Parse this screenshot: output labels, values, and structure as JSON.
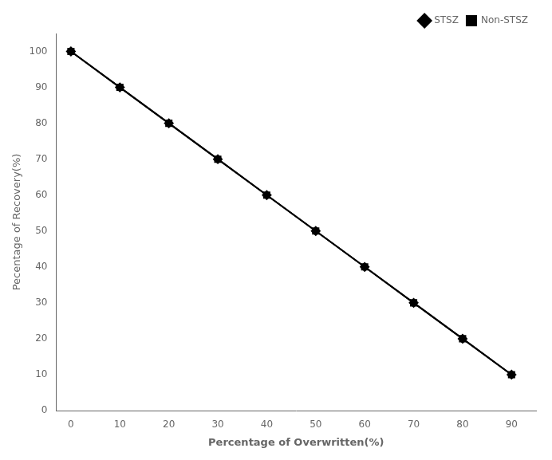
{
  "chart_data": {
    "type": "line",
    "x": [
      0,
      10,
      20,
      30,
      40,
      50,
      60,
      70,
      80,
      90
    ],
    "series": [
      {
        "name": "STSZ",
        "color": "#000000",
        "marker": "diamond",
        "values": [
          100,
          90,
          80,
          70,
          60,
          50,
          40,
          30,
          20,
          10
        ]
      },
      {
        "name": "Non-STSZ",
        "color": "#000000",
        "marker": "square",
        "values": [
          100,
          90,
          80,
          70,
          60,
          50,
          40,
          30,
          20,
          10
        ]
      }
    ],
    "xlabel": "Percentage of Overwritten(%)",
    "ylabel": "Pecentage of Recovery(%)",
    "xlim": [
      -3,
      95
    ],
    "ylim": [
      0,
      105
    ],
    "xticks": [
      0,
      10,
      20,
      30,
      40,
      50,
      60,
      70,
      80,
      90
    ],
    "yticks": [
      0,
      10,
      20,
      30,
      40,
      50,
      60,
      70,
      80,
      90,
      100
    ],
    "legend": "upper right",
    "grid": false
  }
}
